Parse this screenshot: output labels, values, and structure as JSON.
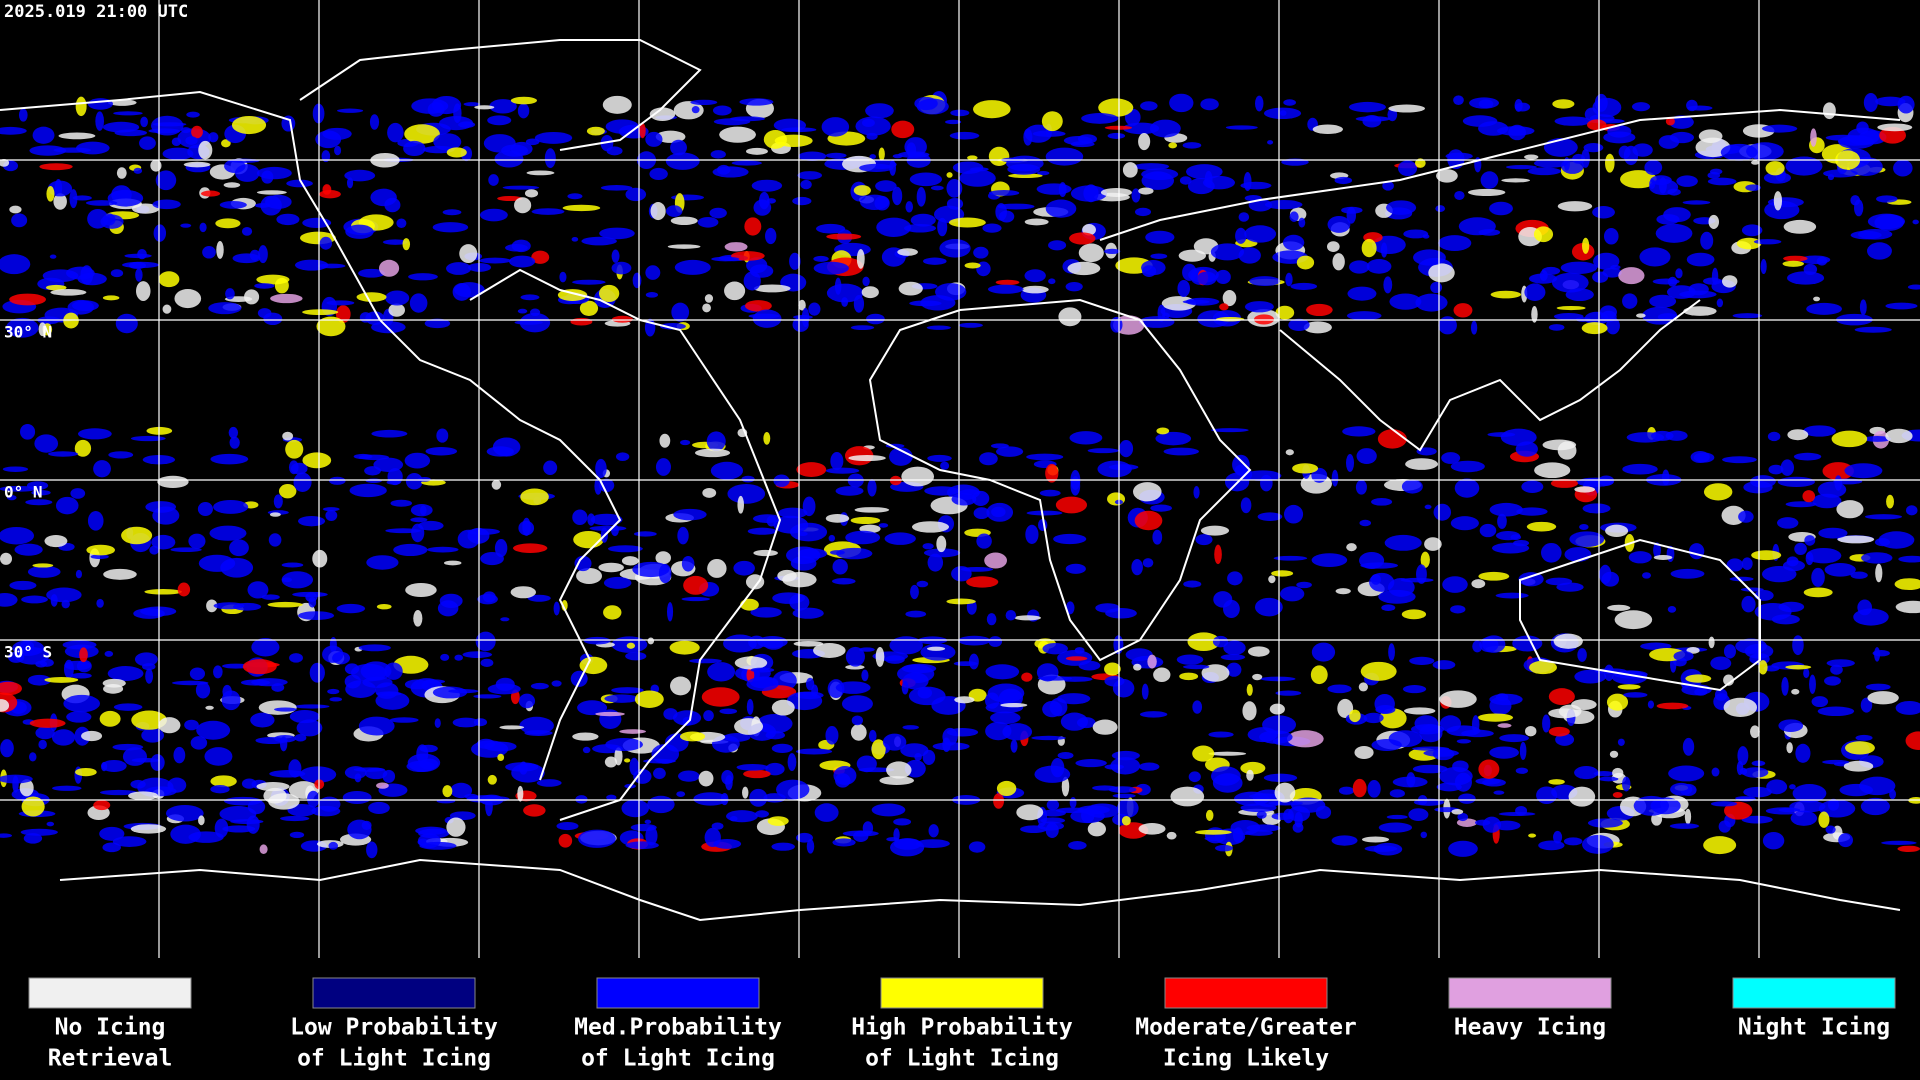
{
  "header": {
    "timestamp": "2025.019 21:00 UTC"
  },
  "latitude_labels": [
    "30° N",
    "0° N",
    "30° S"
  ],
  "legend": {
    "items": [
      {
        "lines": [
          "No Icing",
          "Retrieval"
        ],
        "color": "#f0f0f0"
      },
      {
        "lines": [
          "Low Probability",
          "of Light Icing"
        ],
        "color": "#000080"
      },
      {
        "lines": [
          "Med.Probability",
          "of Light Icing"
        ],
        "color": "#0000ff"
      },
      {
        "lines": [
          "High Probability",
          "of Light Icing"
        ],
        "color": "#ffff00"
      },
      {
        "lines": [
          "Moderate/Greater",
          "Icing Likely"
        ],
        "color": "#ff0000"
      },
      {
        "lines": [
          "Heavy Icing"
        ],
        "color": "#e0a0e0"
      },
      {
        "lines": [
          "Night Icing"
        ],
        "color": "#00ffff"
      }
    ]
  }
}
